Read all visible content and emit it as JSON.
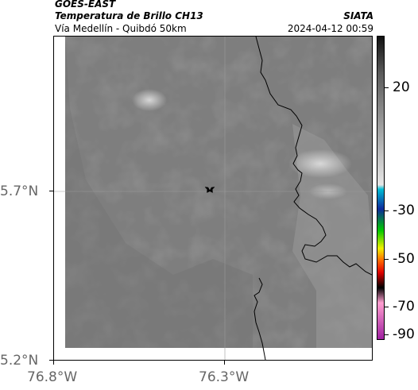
{
  "header": {
    "title_line1": "GOES-EAST",
    "title_line2": "Temperatura de Brillo CH13",
    "subtitle": "Vía Medellín - Quibdó 50km",
    "source": "SIATA",
    "datetime": "2024-04-12 00:59"
  },
  "map": {
    "y_labels": [
      "5.7°N",
      "5.2°N"
    ],
    "x_labels": [
      "76.8°W",
      "76.3°W"
    ],
    "marker_icon": "star-icon",
    "colors": {
      "background": "#7e7e7e",
      "coastline": "#000000",
      "gridline": "#9a9a9a"
    }
  },
  "colorbar": {
    "labels": [
      "20",
      "-30",
      "-50",
      "-70",
      "-90"
    ],
    "colors": [
      "#111111",
      "#5a5a5a",
      "#bdbdbd",
      "#e6e6e6",
      "#00bcd4",
      "#0d2a9c",
      "#00c800",
      "#f0f000",
      "#ff6a00",
      "#e00000",
      "#000000",
      "#ff9fd0",
      "#a020a0"
    ]
  }
}
